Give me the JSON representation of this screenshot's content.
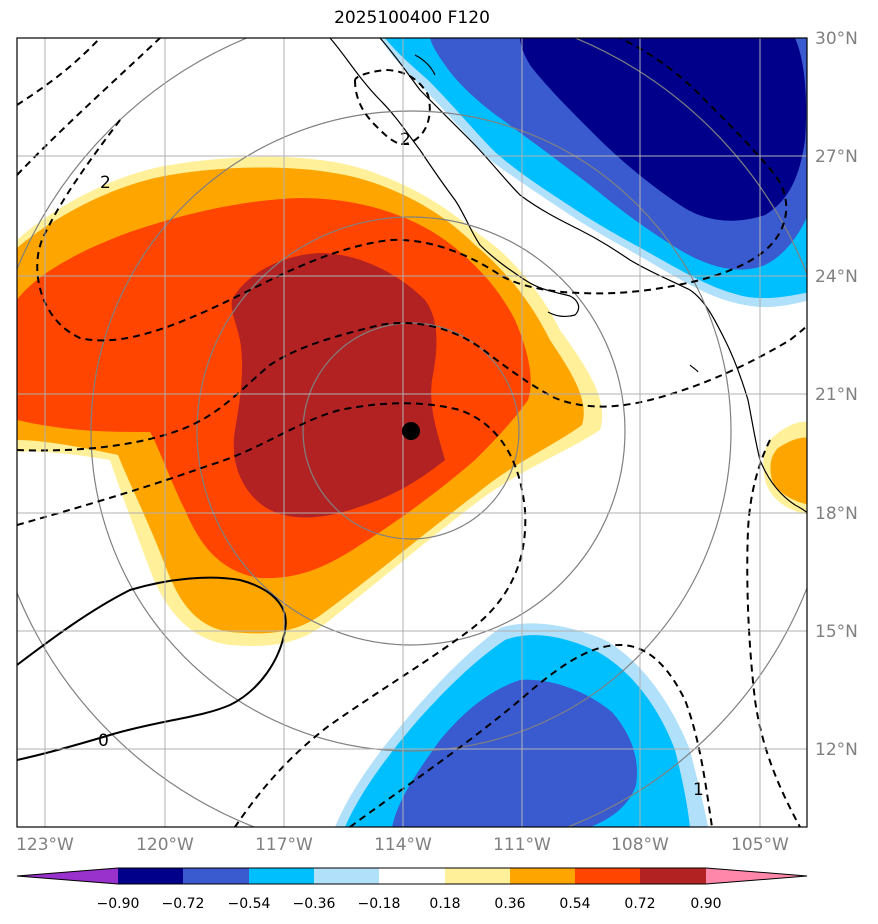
{
  "title": "2025100400 F120",
  "map": {
    "lon_ticks": [
      "123°W",
      "120°W",
      "117°W",
      "114°W",
      "111°W",
      "108°W",
      "105°W"
    ],
    "lat_ticks": [
      "30°N",
      "27°N",
      "24°N",
      "21°N",
      "18°N",
      "15°N",
      "12°N"
    ],
    "center_marker": {
      "lon": -114.0,
      "lat": 20.0
    },
    "contour_labels": [
      "2",
      "2",
      "0",
      "1"
    ]
  },
  "colorbar": {
    "ticks": [
      "−0.90",
      "−0.72",
      "−0.54",
      "−0.36",
      "−0.18",
      "0.18",
      "0.36",
      "0.54",
      "0.72",
      "0.90"
    ],
    "colors": [
      "#9932cc",
      "#00008b",
      "#3a5bcf",
      "#00bfff",
      "#b0e0fa",
      "#ffffff",
      "#fff099",
      "#ffa500",
      "#ff4500",
      "#b22222",
      "#ff88aa"
    ]
  },
  "colors": {
    "dark_red": "#b22222",
    "orange_red": "#ff4500",
    "orange": "#ffa500",
    "light_yellow": "#fff099",
    "navy": "#00008b",
    "royal_blue": "#3a5bcf",
    "sky_blue": "#00bfff",
    "pale_blue": "#b0e0fa"
  }
}
